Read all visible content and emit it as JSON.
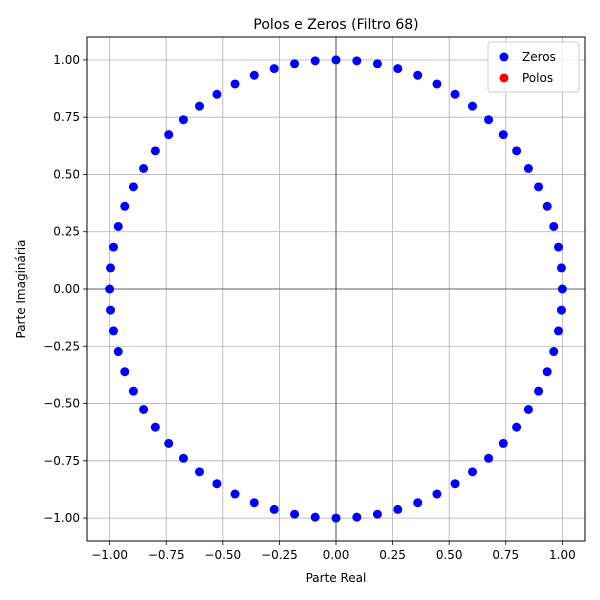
{
  "chart_data": {
    "type": "scatter",
    "title": "Polos e Zeros (Filtro 68)",
    "xlabel": "Parte Real",
    "ylabel": "Parte Imaginária",
    "xlim": [
      -1.1,
      1.1
    ],
    "ylim": [
      -1.1,
      1.1
    ],
    "xticks": [
      -1.0,
      -0.75,
      -0.5,
      -0.25,
      0.0,
      0.25,
      0.5,
      0.75,
      1.0
    ],
    "yticks": [
      -1.0,
      -0.75,
      -0.5,
      -0.25,
      0.0,
      0.25,
      0.5,
      0.75,
      1.0
    ],
    "xtick_labels": [
      "−1.00",
      "−0.75",
      "−0.50",
      "−0.25",
      "0.00",
      "0.25",
      "0.50",
      "0.75",
      "1.00"
    ],
    "ytick_labels": [
      "−1.00",
      "−0.75",
      "−0.50",
      "−0.25",
      "0.00",
      "0.25",
      "0.50",
      "0.75",
      "1.00"
    ],
    "grid": true,
    "reference_lines": {
      "x": 0,
      "y": 0
    },
    "legend_position": "top-right",
    "series": [
      {
        "name": "Zeros",
        "color": "#0000ff",
        "marker": "circle",
        "points": [
          [
            1.0,
            0.0
          ],
          [
            0.996,
            0.092
          ],
          [
            0.983,
            0.183
          ],
          [
            0.962,
            0.273
          ],
          [
            0.933,
            0.361
          ],
          [
            0.895,
            0.446
          ],
          [
            0.85,
            0.526
          ],
          [
            0.798,
            0.603
          ],
          [
            0.739,
            0.674
          ],
          [
            0.674,
            0.739
          ],
          [
            0.603,
            0.798
          ],
          [
            0.526,
            0.85
          ],
          [
            0.446,
            0.895
          ],
          [
            0.361,
            0.933
          ],
          [
            0.273,
            0.962
          ],
          [
            0.183,
            0.983
          ],
          [
            0.092,
            0.996
          ],
          [
            0.0,
            1.0
          ],
          [
            -0.092,
            0.996
          ],
          [
            -0.183,
            0.983
          ],
          [
            -0.273,
            0.962
          ],
          [
            -0.361,
            0.933
          ],
          [
            -0.446,
            0.895
          ],
          [
            -0.526,
            0.85
          ],
          [
            -0.603,
            0.798
          ],
          [
            -0.674,
            0.739
          ],
          [
            -0.739,
            0.674
          ],
          [
            -0.798,
            0.603
          ],
          [
            -0.85,
            0.526
          ],
          [
            -0.895,
            0.446
          ],
          [
            -0.933,
            0.361
          ],
          [
            -0.962,
            0.273
          ],
          [
            -0.983,
            0.183
          ],
          [
            -0.996,
            0.092
          ],
          [
            -1.0,
            0.0
          ],
          [
            -0.996,
            -0.092
          ],
          [
            -0.983,
            -0.183
          ],
          [
            -0.962,
            -0.273
          ],
          [
            -0.933,
            -0.361
          ],
          [
            -0.895,
            -0.446
          ],
          [
            -0.85,
            -0.526
          ],
          [
            -0.798,
            -0.603
          ],
          [
            -0.739,
            -0.674
          ],
          [
            -0.674,
            -0.739
          ],
          [
            -0.603,
            -0.798
          ],
          [
            -0.526,
            -0.85
          ],
          [
            -0.446,
            -0.895
          ],
          [
            -0.361,
            -0.933
          ],
          [
            -0.273,
            -0.962
          ],
          [
            -0.183,
            -0.983
          ],
          [
            -0.092,
            -0.996
          ],
          [
            0.0,
            -1.0
          ],
          [
            0.092,
            -0.996
          ],
          [
            0.183,
            -0.983
          ],
          [
            0.273,
            -0.962
          ],
          [
            0.361,
            -0.933
          ],
          [
            0.446,
            -0.895
          ],
          [
            0.526,
            -0.85
          ],
          [
            0.603,
            -0.798
          ],
          [
            0.674,
            -0.739
          ],
          [
            0.739,
            -0.674
          ],
          [
            0.798,
            -0.603
          ],
          [
            0.85,
            -0.526
          ],
          [
            0.895,
            -0.446
          ],
          [
            0.933,
            -0.361
          ],
          [
            0.962,
            -0.273
          ],
          [
            0.983,
            -0.183
          ],
          [
            0.996,
            -0.092
          ]
        ]
      },
      {
        "name": "Polos",
        "color": "#ff0000",
        "marker": "circle",
        "points": []
      }
    ]
  }
}
